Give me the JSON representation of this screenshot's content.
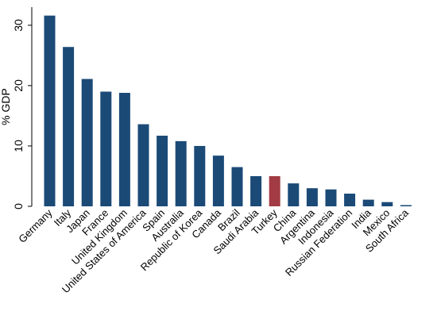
{
  "chart_data": {
    "type": "bar",
    "title": "",
    "xlabel": "",
    "ylabel": "% GDP",
    "ylim": [
      0,
      33
    ],
    "yticks": [
      0,
      10,
      20,
      30
    ],
    "grid": false,
    "categories": [
      "Germany",
      "Italy",
      "Japan",
      "France",
      "United Kingdom",
      "United States of America",
      "Spain",
      "Australia",
      "Republic of Korea",
      "Canada",
      "Brazil",
      "Saudi Arabia",
      "Turkey",
      "China",
      "Argentina",
      "Indonesia",
      "Russian Federation",
      "India",
      "Mexico",
      "South Africa"
    ],
    "values": [
      31.6,
      26.4,
      21.1,
      19.0,
      18.8,
      13.6,
      11.7,
      10.8,
      10.0,
      8.4,
      6.5,
      5.0,
      5.0,
      3.8,
      3.0,
      2.8,
      2.1,
      1.1,
      0.7,
      0.2
    ],
    "colors": {
      "default": "#1b4a77",
      "highlight": "#a23b44"
    },
    "highlight_category": "Turkey"
  }
}
